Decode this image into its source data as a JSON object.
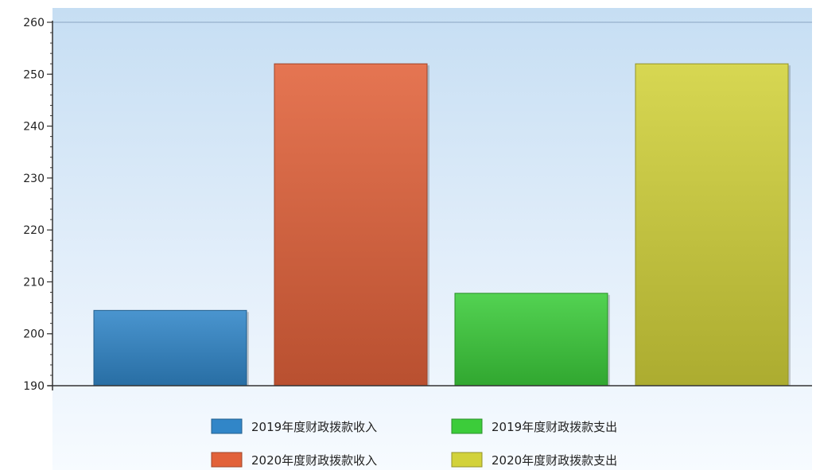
{
  "chart_data": {
    "type": "bar",
    "title": "",
    "xlabel": "",
    "ylabel": "",
    "ylim": [
      190,
      260
    ],
    "yticks": [
      190,
      200,
      210,
      220,
      230,
      240,
      250,
      260
    ],
    "grid": false,
    "legend_position": "bottom",
    "series": [
      {
        "name": "2019年度财政拨款收入",
        "value": 204.5,
        "color": "#3186c8"
      },
      {
        "name": "2020年度财政拨款收入",
        "value": 252,
        "color": "#e2623a"
      },
      {
        "name": "2019年度财政拨款支出",
        "value": 207.8,
        "color": "#3ccc3a"
      },
      {
        "name": "2020年度财政拨款支出",
        "value": 252,
        "color": "#d2d23a"
      }
    ]
  }
}
